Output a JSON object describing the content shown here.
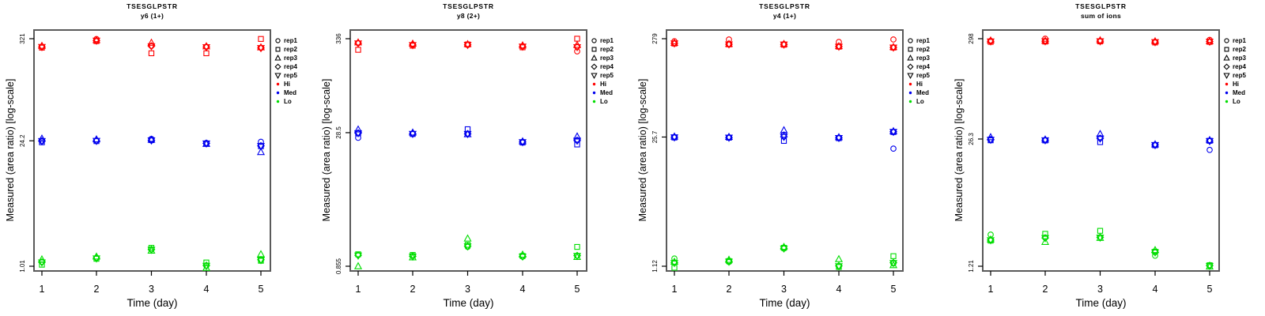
{
  "figure": {
    "ylabel": "Measured (area ratio) [log-scale]",
    "xlabel": "Time (day)",
    "legend": {
      "reps": [
        {
          "label": "rep1",
          "marker": "circle"
        },
        {
          "label": "rep2",
          "marker": "square"
        },
        {
          "label": "rep3",
          "marker": "triangle-up"
        },
        {
          "label": "rep4",
          "marker": "diamond"
        },
        {
          "label": "rep5",
          "marker": "triangle-down"
        }
      ],
      "levels": [
        {
          "label": "Hi",
          "color": "#FF0000"
        },
        {
          "label": "Med",
          "color": "#0000EE"
        },
        {
          "label": "Lo",
          "color": "#00DD00"
        }
      ]
    }
  },
  "chart_data": [
    {
      "type": "scatter",
      "title": "TSESGLPSTR",
      "subtitle": "y6 (1+)",
      "xlabel": "Time (day)",
      "ylabel": "Measured (area ratio) [log-scale]",
      "x": [
        1,
        2,
        3,
        4,
        5
      ],
      "log_scale": true,
      "yticks": [
        321,
        24.2,
        1.01
      ],
      "legend_position": "right",
      "grid": false,
      "series": [
        {
          "name": "Hi",
          "color": "#FF0000",
          "values_by_day": [
            [
              262,
              256,
              268,
              261,
              260
            ],
            [
              318,
              302,
              310,
              306,
              305
            ],
            [
              268,
              222,
              290,
              266,
              265
            ],
            [
              262,
              222,
              265,
              260,
              259
            ],
            [
              255,
              319,
              258,
              254,
              253
            ]
          ]
        },
        {
          "name": "Med",
          "color": "#0000EE",
          "values_by_day": [
            [
              24.0,
              23.3,
              25.6,
              24.1,
              24.0
            ],
            [
              24.3,
              24.0,
              25.1,
              24.2,
              24.1
            ],
            [
              25.4,
              24.6,
              24.9,
              24.5,
              24.4
            ],
            [
              22.9,
              22.5,
              22.4,
              22.7,
              22.6
            ],
            [
              23.6,
              21.1,
              18.2,
              21.3,
              21.2
            ]
          ]
        },
        {
          "name": "Lo",
          "color": "#00DD00",
          "values_by_day": [
            [
              1.13,
              1.05,
              1.2,
              1.12,
              1.11
            ],
            [
              1.25,
              1.22,
              1.29,
              1.24,
              1.23
            ],
            [
              1.55,
              1.61,
              1.5,
              1.54,
              1.53
            ],
            [
              1.02,
              1.11,
              0.97,
              1.03,
              1.02
            ],
            [
              1.18,
              1.16,
              1.37,
              1.19,
              1.18
            ]
          ]
        }
      ]
    },
    {
      "type": "scatter",
      "title": "TSESGLPSTR",
      "subtitle": "y8 (2+)",
      "xlabel": "Time (day)",
      "ylabel": "Measured (area ratio) [log-scale]",
      "x": [
        1,
        2,
        3,
        4,
        5
      ],
      "log_scale": true,
      "yticks": [
        336,
        28.5,
        0.855
      ],
      "legend_position": "right",
      "grid": false,
      "series": [
        {
          "name": "Hi",
          "color": "#FF0000",
          "values_by_day": [
            [
              300,
              251,
              305,
              298,
              297
            ],
            [
              288,
              280,
              295,
              285,
              284
            ],
            [
              285,
              289,
              292,
              286,
              285
            ],
            [
              275,
              268,
              282,
              274,
              273
            ],
            [
              241,
              336,
              286,
              270,
              269
            ]
          ]
        },
        {
          "name": "Med",
          "color": "#0000EE",
          "values_by_day": [
            [
              24.9,
              28.0,
              31.0,
              28.2,
              28.1
            ],
            [
              27.8,
              27.5,
              28.6,
              27.7,
              27.6
            ],
            [
              27.8,
              31.2,
              27.4,
              27.6,
              27.5
            ],
            [
              22.4,
              22.0,
              22.7,
              22.3,
              22.2
            ],
            [
              23.4,
              20.9,
              25.8,
              23.2,
              23.1
            ]
          ]
        },
        {
          "name": "Lo",
          "color": "#00DD00",
          "values_by_day": [
            [
              1.15,
              1.17,
              0.855,
              1.14,
              1.13
            ],
            [
              1.12,
              1.15,
              1.08,
              1.11,
              1.1
            ],
            [
              1.42,
              1.5,
              1.77,
              1.45,
              1.44
            ],
            [
              1.1,
              1.12,
              1.16,
              1.11,
              1.1
            ],
            [
              1.12,
              1.42,
              1.09,
              1.13,
              1.12
            ]
          ]
        }
      ]
    },
    {
      "type": "scatter",
      "title": "TSESGLPSTR",
      "subtitle": "y4 (1+)",
      "xlabel": "Time (day)",
      "ylabel": "Measured (area ratio) [log-scale]",
      "x": [
        1,
        2,
        3,
        4,
        5
      ],
      "log_scale": true,
      "yticks": [
        279,
        25.7,
        1.12
      ],
      "legend_position": "right",
      "grid": false,
      "series": [
        {
          "name": "Hi",
          "color": "#FF0000",
          "values_by_day": [
            [
              262,
              248,
              252,
              250,
              249
            ],
            [
              274,
              243,
              246,
              244,
              243
            ],
            [
              244,
              241,
              246,
              243,
              242
            ],
            [
              258,
              230,
              233,
              231,
              230
            ],
            [
              274,
              225,
              228,
              226,
              225
            ]
          ]
        },
        {
          "name": "Med",
          "color": "#0000EE",
          "values_by_day": [
            [
              25.7,
              25.4,
              26.0,
              25.6,
              25.5
            ],
            [
              25.5,
              25.3,
              25.8,
              25.4,
              25.3
            ],
            [
              27.2,
              23.4,
              30.3,
              25.9,
              25.8
            ],
            [
              25.3,
              25.0,
              25.6,
              25.2,
              25.1
            ],
            [
              19.4,
              29.0,
              29.6,
              29.2,
              29.1
            ]
          ]
        },
        {
          "name": "Lo",
          "color": "#00DD00",
          "values_by_day": [
            [
              1.35,
              1.08,
              1.25,
              1.22,
              1.21
            ],
            [
              1.24,
              1.27,
              1.31,
              1.26,
              1.25
            ],
            [
              1.72,
              1.75,
              1.79,
              1.73,
              1.72
            ],
            [
              1.12,
              1.1,
              1.33,
              1.13,
              1.12
            ],
            [
              1.2,
              1.43,
              1.15,
              1.22,
              1.21
            ]
          ]
        }
      ]
    },
    {
      "type": "scatter",
      "title": "TSESGLPSTR",
      "subtitle": "sum of ions",
      "xlabel": "Time (day)",
      "ylabel": "Measured (area ratio) [log-scale]",
      "x": [
        1,
        2,
        3,
        4,
        5
      ],
      "log_scale": true,
      "yticks": [
        298,
        26.3,
        1.21
      ],
      "legend_position": "right",
      "grid": false,
      "series": [
        {
          "name": "Hi",
          "color": "#FF0000",
          "values_by_day": [
            [
              283,
              276,
              286,
              280,
              279
            ],
            [
              298,
              278,
              284,
              281,
              280
            ],
            [
              282,
              279,
              287,
              281,
              280
            ],
            [
              276,
              272,
              280,
              275,
              274
            ],
            [
              290,
              276,
              281,
              278,
              277
            ]
          ]
        },
        {
          "name": "Med",
          "color": "#0000EE",
          "values_by_day": [
            [
              25.8,
              25.5,
              27.5,
              25.9,
              25.8
            ],
            [
              25.6,
              25.4,
              26.0,
              25.6,
              25.5
            ],
            [
              26.9,
              24.4,
              29.7,
              26.7,
              26.6
            ],
            [
              22.9,
              22.6,
              23.1,
              22.8,
              22.7
            ],
            [
              20.2,
              25.2,
              25.6,
              25.1,
              25.0
            ]
          ]
        },
        {
          "name": "Lo",
          "color": "#00DD00",
          "values_by_day": [
            [
              2.6,
              2.25,
              2.31,
              2.28,
              2.27
            ],
            [
              2.42,
              2.65,
              2.18,
              2.4,
              2.39
            ],
            [
              2.44,
              2.85,
              2.4,
              2.43,
              2.42
            ],
            [
              1.56,
              1.72,
              1.79,
              1.7,
              1.69
            ],
            [
              1.22,
              1.24,
              1.2,
              1.23,
              1.22
            ]
          ]
        }
      ]
    }
  ]
}
